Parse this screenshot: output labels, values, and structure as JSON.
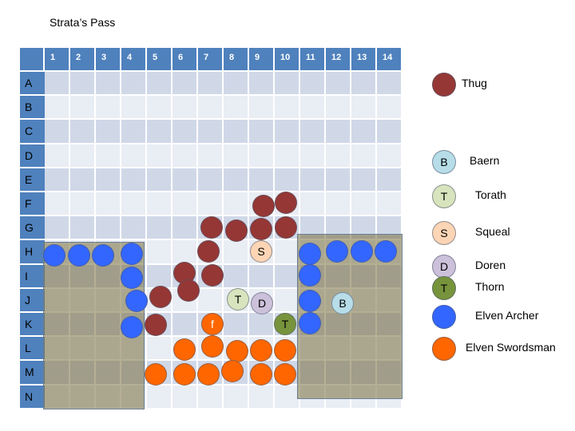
{
  "title": "Strata’s Pass",
  "columns": [
    "1",
    "2",
    "3",
    "4",
    "5",
    "6",
    "7",
    "8",
    "9",
    "10",
    "11",
    "12",
    "13",
    "14"
  ],
  "rows": [
    "A",
    "B",
    "C",
    "D",
    "E",
    "F",
    "G",
    "H",
    "I",
    "J",
    "K",
    "L",
    "M",
    "N"
  ],
  "colors": {
    "thug": "#953735",
    "archer": "#3366ff",
    "swordsman": "#ff6600",
    "baern": "#b7dde8",
    "torath": "#d7e4bd",
    "squeal": "#fcd5b5",
    "doren": "#ccc1da",
    "thorn": "#77933c"
  },
  "tokens": [
    {
      "type": "thug",
      "cell": "F9"
    },
    {
      "type": "thug",
      "cell": "F10"
    },
    {
      "type": "thug",
      "cell": "G7"
    },
    {
      "type": "thug",
      "cell": "G8"
    },
    {
      "type": "thug",
      "cell": "G9"
    },
    {
      "type": "thug",
      "cell": "G10"
    },
    {
      "type": "thug",
      "cell": "H7"
    },
    {
      "type": "thug",
      "cell": "I6"
    },
    {
      "type": "thug",
      "cell": "I7"
    },
    {
      "type": "thug",
      "cell": "I6"
    },
    {
      "type": "thug",
      "cell": "J5"
    },
    {
      "type": "thug",
      "cell": "K5"
    },
    {
      "type": "archer",
      "cell": "H1"
    },
    {
      "type": "archer",
      "cell": "H2"
    },
    {
      "type": "archer",
      "cell": "H3"
    },
    {
      "type": "archer",
      "cell": "H4"
    },
    {
      "type": "archer",
      "cell": "I4"
    },
    {
      "type": "archer",
      "cell": "J4"
    },
    {
      "type": "archer",
      "cell": "K4"
    },
    {
      "type": "archer",
      "cell": "H11"
    },
    {
      "type": "archer",
      "cell": "H12"
    },
    {
      "type": "archer",
      "cell": "H13"
    },
    {
      "type": "archer",
      "cell": "H14"
    },
    {
      "type": "archer",
      "cell": "I11"
    },
    {
      "type": "archer",
      "cell": "J11"
    },
    {
      "type": "archer",
      "cell": "K11"
    },
    {
      "type": "swordsman",
      "cell": "K7",
      "letter": "f"
    },
    {
      "type": "swordsman",
      "cell": "L6"
    },
    {
      "type": "swordsman",
      "cell": "L7"
    },
    {
      "type": "swordsman",
      "cell": "L8"
    },
    {
      "type": "swordsman",
      "cell": "L9"
    },
    {
      "type": "swordsman",
      "cell": "L10"
    },
    {
      "type": "swordsman",
      "cell": "M5"
    },
    {
      "type": "swordsman",
      "cell": "M6"
    },
    {
      "type": "swordsman",
      "cell": "M7"
    },
    {
      "type": "swordsman",
      "cell": "M8"
    },
    {
      "type": "swordsman",
      "cell": "M9"
    },
    {
      "type": "swordsman",
      "cell": "M10"
    },
    {
      "type": "squeal",
      "cell": "H9",
      "letter": "S"
    },
    {
      "type": "torath",
      "cell": "J8",
      "letter": "T"
    },
    {
      "type": "doren",
      "cell": "J9",
      "letter": "D"
    },
    {
      "type": "thorn",
      "cell": "K10",
      "letter": "T"
    },
    {
      "type": "baern",
      "cell": "J12",
      "letter": "B"
    }
  ],
  "legend": [
    {
      "type": "thug",
      "letter": "",
      "label": "Thug"
    },
    {
      "type": "baern",
      "letter": "B",
      "label": "Baern"
    },
    {
      "type": "torath",
      "letter": "T",
      "label": "Torath"
    },
    {
      "type": "squeal",
      "letter": "S",
      "label": "Squeal"
    },
    {
      "type": "doren",
      "letter": "D",
      "label": "Doren"
    },
    {
      "type": "thorn",
      "letter": "T",
      "label": "Thorn"
    },
    {
      "type": "archer",
      "letter": "",
      "label": "Elven Archer"
    },
    {
      "type": "swordsman",
      "letter": "",
      "label": "Elven Swordsman"
    }
  ]
}
